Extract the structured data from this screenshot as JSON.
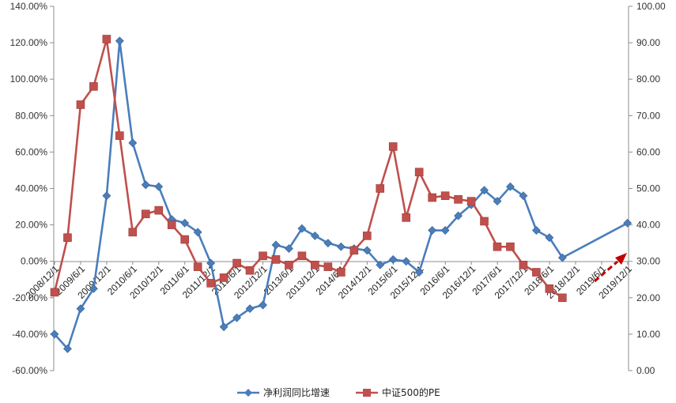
{
  "chart_data": {
    "type": "line",
    "title": "",
    "xlabel": "",
    "ylabel": "",
    "x_tick_labels": [
      "2008/12/1",
      "2009/6/1",
      "2009/12/1",
      "2010/6/1",
      "2010/12/1",
      "2011/6/1",
      "2011/12/1",
      "2012/6/1",
      "2012/12/1",
      "2013/6/1",
      "2013/12/1",
      "2014/6/1",
      "2014/12/1",
      "2015/6/1",
      "2015/12/1",
      "2016/6/1",
      "2016/12/1",
      "2017/6/1",
      "2017/12/1",
      "2018/6/1",
      "2018/12/1",
      "2019/6/1",
      "2019/12/1"
    ],
    "y_left": {
      "min": -0.6,
      "max": 1.4,
      "step": 0.2,
      "tick_labels": [
        "-60.00%",
        "-40.00%",
        "-20.00%",
        "0.00%",
        "20.00%",
        "40.00%",
        "60.00%",
        "80.00%",
        "100.00%",
        "120.00%",
        "140.00%"
      ]
    },
    "y_right": {
      "min": 0,
      "max": 100,
      "step": 10,
      "tick_labels": [
        "0.00",
        "10.00",
        "20.00",
        "30.00",
        "40.00",
        "50.00",
        "60.00",
        "70.00",
        "80.00",
        "90.00",
        "100.00"
      ]
    },
    "legend_position": "bottom",
    "series": [
      {
        "name": "净利润同比增速",
        "axis": "left",
        "color": "#4a7ebb",
        "marker": "diamond",
        "points": [
          {
            "x": 0,
            "y": -0.4
          },
          {
            "x": 1,
            "y": -0.48
          },
          {
            "x": 2,
            "y": -0.26
          },
          {
            "x": 3,
            "y": -0.15
          },
          {
            "x": 4,
            "y": 0.36
          },
          {
            "x": 5,
            "y": 1.21
          },
          {
            "x": 6,
            "y": 0.65
          },
          {
            "x": 7,
            "y": 0.42
          },
          {
            "x": 8,
            "y": 0.41
          },
          {
            "x": 9,
            "y": 0.23
          },
          {
            "x": 10,
            "y": 0.21
          },
          {
            "x": 11,
            "y": 0.16
          },
          {
            "x": 12,
            "y": -0.01
          },
          {
            "x": 13,
            "y": -0.36
          },
          {
            "x": 14,
            "y": -0.31
          },
          {
            "x": 15,
            "y": -0.26
          },
          {
            "x": 16,
            "y": -0.24
          },
          {
            "x": 17,
            "y": 0.09
          },
          {
            "x": 18,
            "y": 0.07
          },
          {
            "x": 19,
            "y": 0.18
          },
          {
            "x": 20,
            "y": 0.14
          },
          {
            "x": 21,
            "y": 0.1
          },
          {
            "x": 22,
            "y": 0.08
          },
          {
            "x": 23,
            "y": 0.07
          },
          {
            "x": 24,
            "y": 0.06
          },
          {
            "x": 25,
            "y": -0.02
          },
          {
            "x": 26,
            "y": 0.01
          },
          {
            "x": 27,
            "y": 0.0
          },
          {
            "x": 28,
            "y": -0.06
          },
          {
            "x": 29,
            "y": 0.17
          },
          {
            "x": 30,
            "y": 0.17
          },
          {
            "x": 31,
            "y": 0.25
          },
          {
            "x": 32,
            "y": 0.31
          },
          {
            "x": 33,
            "y": 0.39
          },
          {
            "x": 34,
            "y": 0.33
          },
          {
            "x": 35,
            "y": 0.41
          },
          {
            "x": 36,
            "y": 0.36
          },
          {
            "x": 37,
            "y": 0.17
          },
          {
            "x": 38,
            "y": 0.13
          },
          {
            "x": 39,
            "y": 0.02
          },
          {
            "x": 44,
            "y": 0.21
          }
        ]
      },
      {
        "name": "中证500的PE",
        "axis": "right",
        "color": "#c0504d",
        "marker": "square",
        "points": [
          {
            "x": 0,
            "y": 21.5
          },
          {
            "x": 1,
            "y": 36.5
          },
          {
            "x": 2,
            "y": 73.0
          },
          {
            "x": 3,
            "y": 78.0
          },
          {
            "x": 4,
            "y": 91.0
          },
          {
            "x": 5,
            "y": 64.5
          },
          {
            "x": 6,
            "y": 38.0
          },
          {
            "x": 7,
            "y": 43.0
          },
          {
            "x": 8,
            "y": 44.0
          },
          {
            "x": 9,
            "y": 40.0
          },
          {
            "x": 10,
            "y": 36.0
          },
          {
            "x": 11,
            "y": 28.5
          },
          {
            "x": 12,
            "y": 24.0
          },
          {
            "x": 13,
            "y": 25.5
          },
          {
            "x": 14,
            "y": 29.5
          },
          {
            "x": 15,
            "y": 27.5
          },
          {
            "x": 16,
            "y": 31.5
          },
          {
            "x": 17,
            "y": 30.5
          },
          {
            "x": 18,
            "y": 29.0
          },
          {
            "x": 19,
            "y": 31.5
          },
          {
            "x": 20,
            "y": 29.0
          },
          {
            "x": 21,
            "y": 28.5
          },
          {
            "x": 22,
            "y": 27.0
          },
          {
            "x": 23,
            "y": 33.0
          },
          {
            "x": 24,
            "y": 37.0
          },
          {
            "x": 25,
            "y": 50.0
          },
          {
            "x": 26,
            "y": 61.5
          },
          {
            "x": 27,
            "y": 42.0
          },
          {
            "x": 28,
            "y": 54.5
          },
          {
            "x": 29,
            "y": 47.5
          },
          {
            "x": 30,
            "y": 48.0
          },
          {
            "x": 31,
            "y": 47.0
          },
          {
            "x": 32,
            "y": 46.5
          },
          {
            "x": 33,
            "y": 41.0
          },
          {
            "x": 34,
            "y": 34.0
          },
          {
            "x": 35,
            "y": 34.0
          },
          {
            "x": 36,
            "y": 29.0
          },
          {
            "x": 37,
            "y": 27.0
          },
          {
            "x": 38,
            "y": 22.5
          },
          {
            "x": 39,
            "y": 20.0
          }
        ]
      }
    ],
    "annotation": {
      "shape": "dashed-arrow",
      "color": "#c00000"
    }
  }
}
